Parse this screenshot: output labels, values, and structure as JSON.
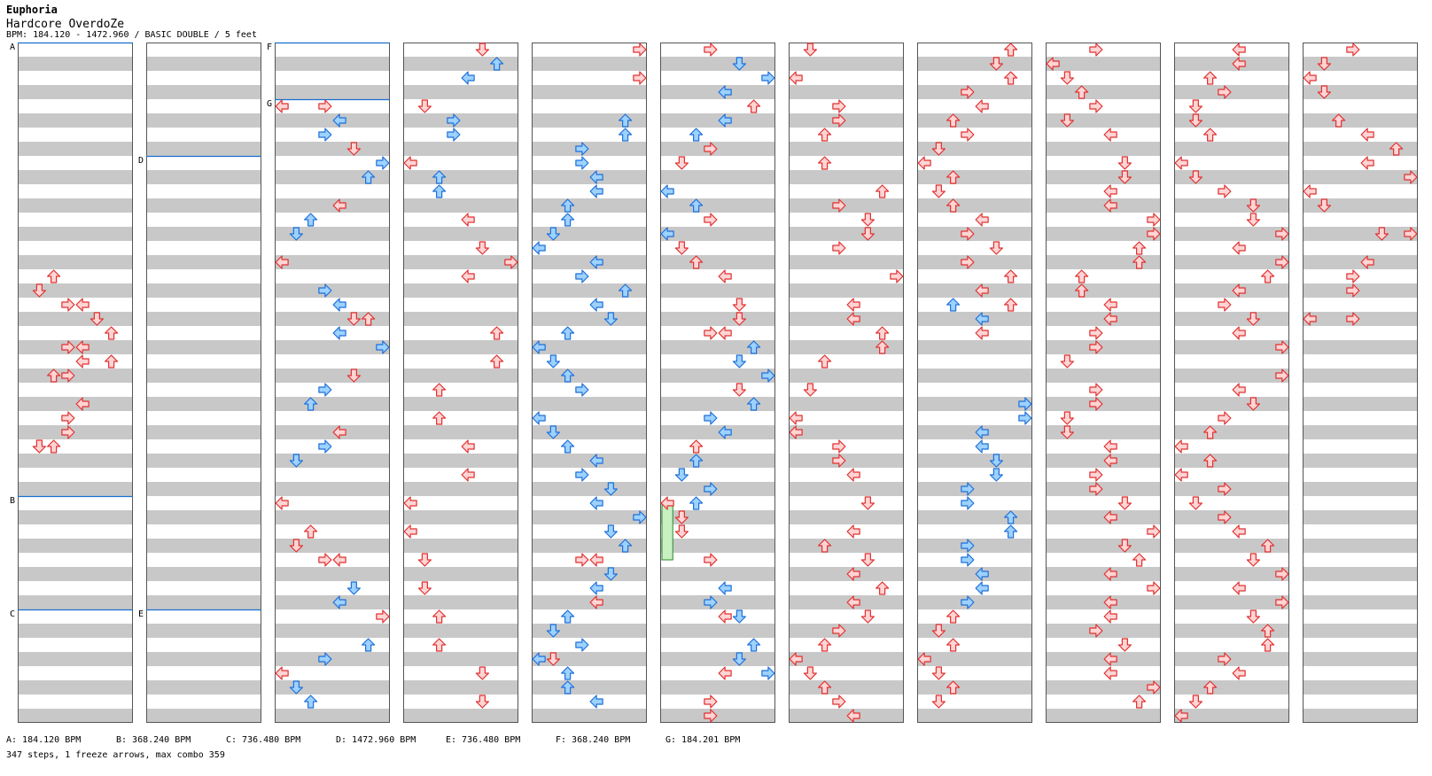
{
  "song": {
    "title": "Euphoria",
    "difficulty": "Hardcore OverdoZe",
    "bpm_line": "BPM: 184.120 - 1472.960 / BASIC DOUBLE / 5 feet"
  },
  "colors": {
    "stripe": "#c8c8c8",
    "column_border": "#555555",
    "bpm_marker_line": "#1a6fd0",
    "arrow_red_fill": "#ffd4d4",
    "arrow_red_stroke": "#e03030",
    "arrow_blue_fill": "#9dd2ff",
    "arrow_blue_stroke": "#1e6fd9",
    "freeze_fill": "#c8f0c0",
    "freeze_stroke": "#2a8a2a"
  },
  "chart_layout": {
    "columns": 11,
    "measures_per_column": 12,
    "rows_per_measure": 4,
    "lanes": [
      "left",
      "down",
      "up",
      "right",
      "left",
      "down",
      "up",
      "right"
    ]
  },
  "bpm_markers": [
    {
      "label": "A",
      "column": 0,
      "measure": 0
    },
    {
      "label": "B",
      "column": 0,
      "measure": 8
    },
    {
      "label": "C",
      "column": 0,
      "measure": 10
    },
    {
      "label": "D",
      "column": 1,
      "measure": 2
    },
    {
      "label": "E",
      "column": 1,
      "measure": 10
    },
    {
      "label": "F",
      "column": 2,
      "measure": 0
    },
    {
      "label": "G",
      "column": 2,
      "measure": 1
    }
  ],
  "bpm_legend": [
    "A: 184.120 BPM",
    "B: 368.240 BPM",
    "C: 736.480 BPM",
    "D: 1472.960 BPM",
    "E: 736.480 BPM",
    "F: 368.240 BPM",
    "G: 184.201 BPM"
  ],
  "summary": "347 steps, 1 freeze arrows, max combo 359",
  "notes": [
    [
      0,
      16,
      2,
      "r"
    ],
    [
      0,
      17,
      1,
      "r"
    ],
    [
      0,
      18,
      3,
      "r"
    ],
    [
      0,
      18,
      4,
      "r"
    ],
    [
      0,
      19,
      5,
      "r"
    ],
    [
      0,
      20,
      6,
      "r"
    ],
    [
      0,
      21,
      3,
      "r"
    ],
    [
      0,
      21,
      4,
      "r"
    ],
    [
      0,
      22,
      4,
      "r"
    ],
    [
      0,
      22,
      6,
      "r"
    ],
    [
      0,
      23,
      2,
      "r"
    ],
    [
      0,
      23,
      3,
      "r"
    ],
    [
      0,
      25,
      4,
      "r"
    ],
    [
      0,
      26,
      3,
      "r"
    ],
    [
      0,
      27,
      3,
      "r"
    ],
    [
      0,
      28,
      1,
      "r"
    ],
    [
      0,
      28,
      2,
      "r"
    ],
    [
      2,
      4,
      0,
      "r"
    ],
    [
      2,
      4,
      3,
      "r"
    ],
    [
      2,
      5,
      4,
      "b"
    ],
    [
      2,
      6,
      3,
      "b"
    ],
    [
      2,
      7,
      5,
      "r"
    ],
    [
      2,
      8,
      7,
      "b"
    ],
    [
      2,
      9,
      6,
      "b"
    ],
    [
      2,
      11,
      4,
      "r"
    ],
    [
      2,
      12,
      2,
      "b"
    ],
    [
      2,
      13,
      1,
      "b"
    ],
    [
      2,
      15,
      0,
      "r"
    ],
    [
      2,
      17,
      3,
      "b"
    ],
    [
      2,
      18,
      4,
      "b"
    ],
    [
      2,
      19,
      5,
      "r"
    ],
    [
      2,
      19,
      6,
      "r"
    ],
    [
      2,
      20,
      4,
      "b"
    ],
    [
      2,
      21,
      7,
      "b"
    ],
    [
      2,
      23,
      5,
      "r"
    ],
    [
      2,
      24,
      3,
      "b"
    ],
    [
      2,
      25,
      2,
      "b"
    ],
    [
      2,
      27,
      4,
      "r"
    ],
    [
      2,
      28,
      3,
      "b"
    ],
    [
      2,
      29,
      1,
      "b"
    ],
    [
      2,
      32,
      0,
      "r"
    ],
    [
      2,
      34,
      2,
      "r"
    ],
    [
      2,
      35,
      1,
      "r"
    ],
    [
      2,
      36,
      3,
      "r"
    ],
    [
      2,
      36,
      4,
      "r"
    ],
    [
      2,
      38,
      5,
      "b"
    ],
    [
      2,
      39,
      4,
      "b"
    ],
    [
      2,
      40,
      7,
      "r"
    ],
    [
      2,
      42,
      6,
      "b"
    ],
    [
      2,
      43,
      3,
      "b"
    ],
    [
      2,
      44,
      0,
      "r"
    ],
    [
      2,
      45,
      1,
      "b"
    ],
    [
      2,
      46,
      2,
      "b"
    ],
    [
      3,
      0,
      5,
      "r"
    ],
    [
      3,
      1,
      6,
      "b"
    ],
    [
      3,
      2,
      4,
      "b"
    ],
    [
      3,
      4,
      1,
      "r"
    ],
    [
      3,
      5,
      3,
      "b"
    ],
    [
      3,
      6,
      3,
      "b"
    ],
    [
      3,
      8,
      0,
      "r"
    ],
    [
      3,
      9,
      2,
      "b"
    ],
    [
      3,
      10,
      2,
      "b"
    ],
    [
      3,
      12,
      4,
      "r"
    ],
    [
      3,
      14,
      5,
      "r"
    ],
    [
      3,
      15,
      7,
      "r"
    ],
    [
      3,
      16,
      4,
      "r"
    ],
    [
      3,
      20,
      6,
      "r"
    ],
    [
      3,
      22,
      6,
      "r"
    ],
    [
      3,
      24,
      2,
      "r"
    ],
    [
      3,
      26,
      2,
      "r"
    ],
    [
      3,
      28,
      4,
      "r"
    ],
    [
      3,
      30,
      4,
      "r"
    ],
    [
      3,
      32,
      0,
      "r"
    ],
    [
      3,
      34,
      0,
      "r"
    ],
    [
      3,
      36,
      1,
      "r"
    ],
    [
      3,
      38,
      1,
      "r"
    ],
    [
      3,
      40,
      2,
      "r"
    ],
    [
      3,
      42,
      2,
      "r"
    ],
    [
      3,
      44,
      5,
      "r"
    ],
    [
      3,
      46,
      5,
      "r"
    ],
    [
      4,
      0,
      7,
      "r"
    ],
    [
      4,
      2,
      7,
      "r"
    ],
    [
      4,
      5,
      6,
      "b"
    ],
    [
      4,
      6,
      6,
      "b"
    ],
    [
      4,
      7,
      3,
      "b"
    ],
    [
      4,
      8,
      3,
      "b"
    ],
    [
      4,
      9,
      4,
      "b"
    ],
    [
      4,
      10,
      4,
      "b"
    ],
    [
      4,
      11,
      2,
      "b"
    ],
    [
      4,
      12,
      2,
      "b"
    ],
    [
      4,
      13,
      1,
      "b"
    ],
    [
      4,
      14,
      0,
      "b"
    ],
    [
      4,
      15,
      4,
      "b"
    ],
    [
      4,
      16,
      3,
      "b"
    ],
    [
      4,
      17,
      6,
      "b"
    ],
    [
      4,
      18,
      4,
      "b"
    ],
    [
      4,
      19,
      5,
      "b"
    ],
    [
      4,
      20,
      2,
      "b"
    ],
    [
      4,
      21,
      0,
      "b"
    ],
    [
      4,
      22,
      1,
      "b"
    ],
    [
      4,
      23,
      2,
      "b"
    ],
    [
      4,
      24,
      3,
      "b"
    ],
    [
      4,
      26,
      0,
      "b"
    ],
    [
      4,
      27,
      1,
      "b"
    ],
    [
      4,
      28,
      2,
      "b"
    ],
    [
      4,
      29,
      4,
      "b"
    ],
    [
      4,
      30,
      3,
      "b"
    ],
    [
      4,
      31,
      5,
      "b"
    ],
    [
      4,
      32,
      4,
      "b"
    ],
    [
      4,
      33,
      7,
      "b"
    ],
    [
      4,
      34,
      5,
      "b"
    ],
    [
      4,
      35,
      6,
      "b"
    ],
    [
      4,
      36,
      3,
      "r"
    ],
    [
      4,
      36,
      4,
      "r"
    ],
    [
      4,
      37,
      5,
      "b"
    ],
    [
      4,
      38,
      4,
      "b"
    ],
    [
      4,
      39,
      4,
      "r"
    ],
    [
      4,
      40,
      2,
      "b"
    ],
    [
      4,
      41,
      1,
      "b"
    ],
    [
      4,
      42,
      3,
      "b"
    ],
    [
      4,
      43,
      0,
      "b"
    ],
    [
      4,
      43,
      1,
      "r"
    ],
    [
      4,
      44,
      2,
      "b"
    ],
    [
      4,
      45,
      2,
      "b"
    ],
    [
      4,
      46,
      4,
      "b"
    ],
    [
      5,
      0,
      3,
      "r"
    ],
    [
      5,
      1,
      5,
      "b"
    ],
    [
      5,
      2,
      7,
      "b"
    ],
    [
      5,
      3,
      4,
      "b"
    ],
    [
      5,
      4,
      6,
      "r"
    ],
    [
      5,
      5,
      4,
      "b"
    ],
    [
      5,
      6,
      2,
      "b"
    ],
    [
      5,
      7,
      3,
      "r"
    ],
    [
      5,
      8,
      1,
      "r"
    ],
    [
      5,
      10,
      0,
      "b"
    ],
    [
      5,
      11,
      2,
      "b"
    ],
    [
      5,
      12,
      3,
      "r"
    ],
    [
      5,
      13,
      0,
      "b"
    ],
    [
      5,
      14,
      1,
      "r"
    ],
    [
      5,
      15,
      2,
      "r"
    ],
    [
      5,
      16,
      4,
      "r"
    ],
    [
      5,
      18,
      5,
      "r"
    ],
    [
      5,
      19,
      5,
      "r"
    ],
    [
      5,
      20,
      3,
      "r"
    ],
    [
      5,
      20,
      4,
      "r"
    ],
    [
      5,
      21,
      6,
      "b"
    ],
    [
      5,
      22,
      5,
      "b"
    ],
    [
      5,
      23,
      7,
      "b"
    ],
    [
      5,
      24,
      5,
      "r"
    ],
    [
      5,
      25,
      6,
      "b"
    ],
    [
      5,
      26,
      3,
      "b"
    ],
    [
      5,
      27,
      4,
      "b"
    ],
    [
      5,
      28,
      2,
      "r"
    ],
    [
      5,
      29,
      2,
      "b"
    ],
    [
      5,
      30,
      1,
      "b"
    ],
    [
      5,
      31,
      3,
      "b"
    ],
    [
      5,
      32,
      2,
      "b"
    ],
    [
      5,
      33,
      1,
      "r"
    ],
    [
      5,
      34,
      1,
      "r"
    ],
    [
      5,
      36,
      3,
      "r"
    ],
    [
      5,
      38,
      4,
      "b"
    ],
    [
      5,
      39,
      3,
      "b"
    ],
    [
      5,
      40,
      5,
      "b"
    ],
    [
      5,
      40,
      4,
      "r"
    ],
    [
      5,
      42,
      6,
      "b"
    ],
    [
      5,
      43,
      5,
      "b"
    ],
    [
      5,
      44,
      7,
      "b"
    ],
    [
      5,
      44,
      4,
      "r"
    ],
    [
      5,
      46,
      3,
      "r"
    ],
    [
      5,
      47,
      3,
      "r"
    ],
    [
      6,
      0,
      1,
      "r"
    ],
    [
      6,
      2,
      0,
      "r"
    ],
    [
      6,
      4,
      3,
      "r"
    ],
    [
      6,
      5,
      3,
      "r"
    ],
    [
      6,
      6,
      2,
      "r"
    ],
    [
      6,
      8,
      2,
      "r"
    ],
    [
      6,
      10,
      6,
      "r"
    ],
    [
      6,
      11,
      3,
      "r"
    ],
    [
      6,
      12,
      5,
      "r"
    ],
    [
      6,
      13,
      5,
      "r"
    ],
    [
      6,
      14,
      3,
      "r"
    ],
    [
      6,
      16,
      7,
      "r"
    ],
    [
      6,
      18,
      4,
      "r"
    ],
    [
      6,
      19,
      4,
      "r"
    ],
    [
      6,
      20,
      6,
      "r"
    ],
    [
      6,
      21,
      6,
      "r"
    ],
    [
      6,
      22,
      2,
      "r"
    ],
    [
      6,
      24,
      1,
      "r"
    ],
    [
      6,
      26,
      0,
      "r"
    ],
    [
      6,
      27,
      0,
      "r"
    ],
    [
      6,
      28,
      3,
      "r"
    ],
    [
      6,
      29,
      3,
      "r"
    ],
    [
      6,
      30,
      4,
      "r"
    ],
    [
      6,
      32,
      5,
      "r"
    ],
    [
      6,
      34,
      4,
      "r"
    ],
    [
      6,
      35,
      2,
      "r"
    ],
    [
      6,
      36,
      5,
      "r"
    ],
    [
      6,
      37,
      4,
      "r"
    ],
    [
      6,
      38,
      6,
      "r"
    ],
    [
      6,
      39,
      4,
      "r"
    ],
    [
      6,
      40,
      5,
      "r"
    ],
    [
      6,
      41,
      3,
      "r"
    ],
    [
      6,
      42,
      2,
      "r"
    ],
    [
      6,
      43,
      0,
      "r"
    ],
    [
      6,
      44,
      1,
      "r"
    ],
    [
      6,
      45,
      2,
      "r"
    ],
    [
      6,
      46,
      3,
      "r"
    ],
    [
      6,
      47,
      4,
      "r"
    ],
    [
      7,
      0,
      6,
      "r"
    ],
    [
      7,
      1,
      5,
      "r"
    ],
    [
      7,
      2,
      6,
      "r"
    ],
    [
      7,
      3,
      3,
      "r"
    ],
    [
      7,
      4,
      4,
      "r"
    ],
    [
      7,
      5,
      2,
      "r"
    ],
    [
      7,
      6,
      3,
      "r"
    ],
    [
      7,
      7,
      1,
      "r"
    ],
    [
      7,
      8,
      0,
      "r"
    ],
    [
      7,
      9,
      2,
      "r"
    ],
    [
      7,
      10,
      1,
      "r"
    ],
    [
      7,
      11,
      2,
      "r"
    ],
    [
      7,
      12,
      4,
      "r"
    ],
    [
      7,
      13,
      3,
      "r"
    ],
    [
      7,
      14,
      5,
      "r"
    ],
    [
      7,
      15,
      3,
      "r"
    ],
    [
      7,
      16,
      6,
      "r"
    ],
    [
      7,
      17,
      4,
      "r"
    ],
    [
      7,
      18,
      6,
      "r"
    ],
    [
      7,
      18,
      2,
      "b"
    ],
    [
      7,
      19,
      4,
      "b"
    ],
    [
      7,
      20,
      4,
      "r"
    ],
    [
      7,
      25,
      7,
      "b"
    ],
    [
      7,
      26,
      7,
      "b"
    ],
    [
      7,
      27,
      4,
      "b"
    ],
    [
      7,
      28,
      4,
      "b"
    ],
    [
      7,
      29,
      5,
      "b"
    ],
    [
      7,
      30,
      5,
      "b"
    ],
    [
      7,
      31,
      3,
      "b"
    ],
    [
      7,
      32,
      3,
      "b"
    ],
    [
      7,
      33,
      6,
      "b"
    ],
    [
      7,
      34,
      6,
      "b"
    ],
    [
      7,
      35,
      3,
      "b"
    ],
    [
      7,
      36,
      3,
      "b"
    ],
    [
      7,
      37,
      4,
      "b"
    ],
    [
      7,
      38,
      4,
      "b"
    ],
    [
      7,
      39,
      3,
      "b"
    ],
    [
      7,
      40,
      2,
      "r"
    ],
    [
      7,
      41,
      1,
      "r"
    ],
    [
      7,
      42,
      2,
      "r"
    ],
    [
      7,
      43,
      0,
      "r"
    ],
    [
      7,
      44,
      1,
      "r"
    ],
    [
      7,
      45,
      2,
      "r"
    ],
    [
      7,
      46,
      1,
      "r"
    ],
    [
      8,
      0,
      3,
      "r"
    ],
    [
      8,
      1,
      0,
      "r"
    ],
    [
      8,
      2,
      1,
      "r"
    ],
    [
      8,
      3,
      2,
      "r"
    ],
    [
      8,
      4,
      3,
      "r"
    ],
    [
      8,
      5,
      1,
      "r"
    ],
    [
      8,
      6,
      4,
      "r"
    ],
    [
      8,
      8,
      5,
      "r"
    ],
    [
      8,
      9,
      5,
      "r"
    ],
    [
      8,
      10,
      4,
      "r"
    ],
    [
      8,
      11,
      4,
      "r"
    ],
    [
      8,
      12,
      7,
      "r"
    ],
    [
      8,
      13,
      7,
      "r"
    ],
    [
      8,
      14,
      6,
      "r"
    ],
    [
      8,
      15,
      6,
      "r"
    ],
    [
      8,
      16,
      2,
      "r"
    ],
    [
      8,
      17,
      2,
      "r"
    ],
    [
      8,
      18,
      4,
      "r"
    ],
    [
      8,
      19,
      4,
      "r"
    ],
    [
      8,
      20,
      3,
      "r"
    ],
    [
      8,
      21,
      3,
      "r"
    ],
    [
      8,
      22,
      1,
      "r"
    ],
    [
      8,
      24,
      3,
      "r"
    ],
    [
      8,
      25,
      3,
      "r"
    ],
    [
      8,
      26,
      1,
      "r"
    ],
    [
      8,
      27,
      1,
      "r"
    ],
    [
      8,
      28,
      4,
      "r"
    ],
    [
      8,
      29,
      4,
      "r"
    ],
    [
      8,
      30,
      3,
      "r"
    ],
    [
      8,
      31,
      3,
      "r"
    ],
    [
      8,
      32,
      5,
      "r"
    ],
    [
      8,
      33,
      4,
      "r"
    ],
    [
      8,
      34,
      7,
      "r"
    ],
    [
      8,
      35,
      5,
      "r"
    ],
    [
      8,
      36,
      6,
      "r"
    ],
    [
      8,
      37,
      4,
      "r"
    ],
    [
      8,
      38,
      7,
      "r"
    ],
    [
      8,
      39,
      4,
      "r"
    ],
    [
      8,
      40,
      4,
      "r"
    ],
    [
      8,
      41,
      3,
      "r"
    ],
    [
      8,
      42,
      5,
      "r"
    ],
    [
      8,
      43,
      4,
      "r"
    ],
    [
      8,
      44,
      4,
      "r"
    ],
    [
      8,
      45,
      7,
      "r"
    ],
    [
      8,
      46,
      6,
      "r"
    ],
    [
      9,
      0,
      4,
      "r"
    ],
    [
      9,
      1,
      4,
      "r"
    ],
    [
      9,
      2,
      2,
      "r"
    ],
    [
      9,
      3,
      3,
      "r"
    ],
    [
      9,
      4,
      1,
      "r"
    ],
    [
      9,
      5,
      1,
      "r"
    ],
    [
      9,
      6,
      2,
      "r"
    ],
    [
      9,
      8,
      0,
      "r"
    ],
    [
      9,
      9,
      1,
      "r"
    ],
    [
      9,
      10,
      3,
      "r"
    ],
    [
      9,
      11,
      5,
      "r"
    ],
    [
      9,
      12,
      5,
      "r"
    ],
    [
      9,
      13,
      7,
      "r"
    ],
    [
      9,
      14,
      4,
      "r"
    ],
    [
      9,
      15,
      7,
      "r"
    ],
    [
      9,
      16,
      6,
      "r"
    ],
    [
      9,
      17,
      4,
      "r"
    ],
    [
      9,
      18,
      3,
      "r"
    ],
    [
      9,
      19,
      5,
      "r"
    ],
    [
      9,
      20,
      4,
      "r"
    ],
    [
      9,
      21,
      7,
      "r"
    ],
    [
      9,
      23,
      7,
      "r"
    ],
    [
      9,
      24,
      4,
      "r"
    ],
    [
      9,
      25,
      5,
      "r"
    ],
    [
      9,
      26,
      3,
      "r"
    ],
    [
      9,
      27,
      2,
      "r"
    ],
    [
      9,
      28,
      0,
      "r"
    ],
    [
      9,
      29,
      2,
      "r"
    ],
    [
      9,
      30,
      0,
      "r"
    ],
    [
      9,
      31,
      3,
      "r"
    ],
    [
      9,
      32,
      1,
      "r"
    ],
    [
      9,
      33,
      3,
      "r"
    ],
    [
      9,
      34,
      4,
      "r"
    ],
    [
      9,
      35,
      6,
      "r"
    ],
    [
      9,
      36,
      5,
      "r"
    ],
    [
      9,
      37,
      7,
      "r"
    ],
    [
      9,
      38,
      4,
      "r"
    ],
    [
      9,
      39,
      7,
      "r"
    ],
    [
      9,
      40,
      5,
      "r"
    ],
    [
      9,
      41,
      6,
      "r"
    ],
    [
      9,
      42,
      6,
      "r"
    ],
    [
      9,
      43,
      3,
      "r"
    ],
    [
      9,
      44,
      4,
      "r"
    ],
    [
      9,
      45,
      2,
      "r"
    ],
    [
      9,
      46,
      1,
      "r"
    ],
    [
      9,
      47,
      0,
      "r"
    ],
    [
      10,
      0,
      3,
      "r"
    ],
    [
      10,
      1,
      1,
      "r"
    ],
    [
      10,
      2,
      0,
      "r"
    ],
    [
      10,
      3,
      1,
      "r"
    ],
    [
      10,
      5,
      2,
      "r"
    ],
    [
      10,
      6,
      4,
      "r"
    ],
    [
      10,
      7,
      6,
      "r"
    ],
    [
      10,
      8,
      4,
      "r"
    ],
    [
      10,
      9,
      7,
      "r"
    ],
    [
      10,
      10,
      0,
      "r"
    ],
    [
      10,
      11,
      1,
      "r"
    ],
    [
      10,
      13,
      5,
      "r"
    ],
    [
      10,
      13,
      7,
      "r"
    ],
    [
      10,
      15,
      4,
      "r"
    ],
    [
      10,
      16,
      3,
      "r"
    ],
    [
      10,
      17,
      3,
      "r"
    ],
    [
      10,
      19,
      0,
      "r"
    ],
    [
      10,
      19,
      3,
      "r"
    ]
  ],
  "freezes": [
    [
      5,
      32,
      0,
      "g",
      4
    ]
  ]
}
